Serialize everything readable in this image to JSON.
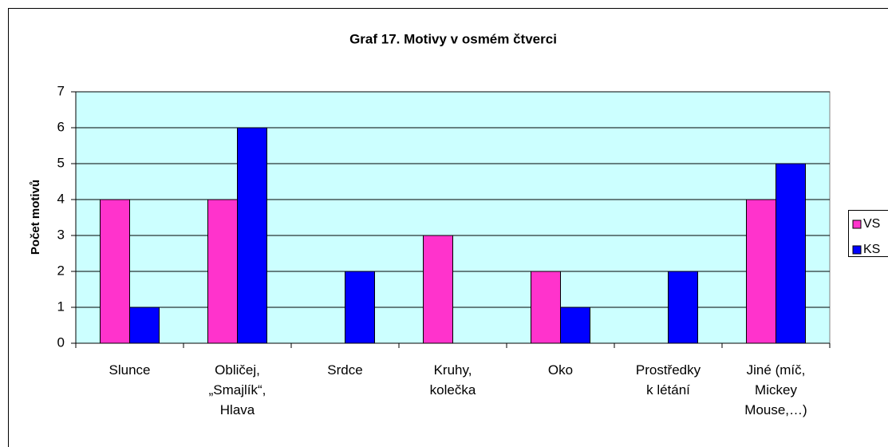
{
  "chart_data": {
    "type": "bar",
    "title": "Graf 17. Motivy  v osmém čtverci",
    "ylabel": "Počet motivů",
    "categories": [
      "Slunce",
      "Obličej,\n„Smajlík“,\nHlava",
      "Srdce",
      "Kruhy,\nkolečka",
      "Oko",
      "Prostředky\nk létání",
      "Jiné (míč,\nMickey\nMouse,…)"
    ],
    "series": [
      {
        "name": "VS",
        "color": "#ff33cc",
        "values": [
          4,
          4,
          0,
          3,
          2,
          0,
          4
        ]
      },
      {
        "name": "KS",
        "color": "#0000ff",
        "values": [
          1,
          6,
          2,
          0,
          1,
          2,
          5
        ]
      }
    ],
    "ylim": [
      0,
      7
    ],
    "yticks": [
      0,
      1,
      2,
      3,
      4,
      5,
      6,
      7
    ],
    "grid": true,
    "legend": "right"
  }
}
